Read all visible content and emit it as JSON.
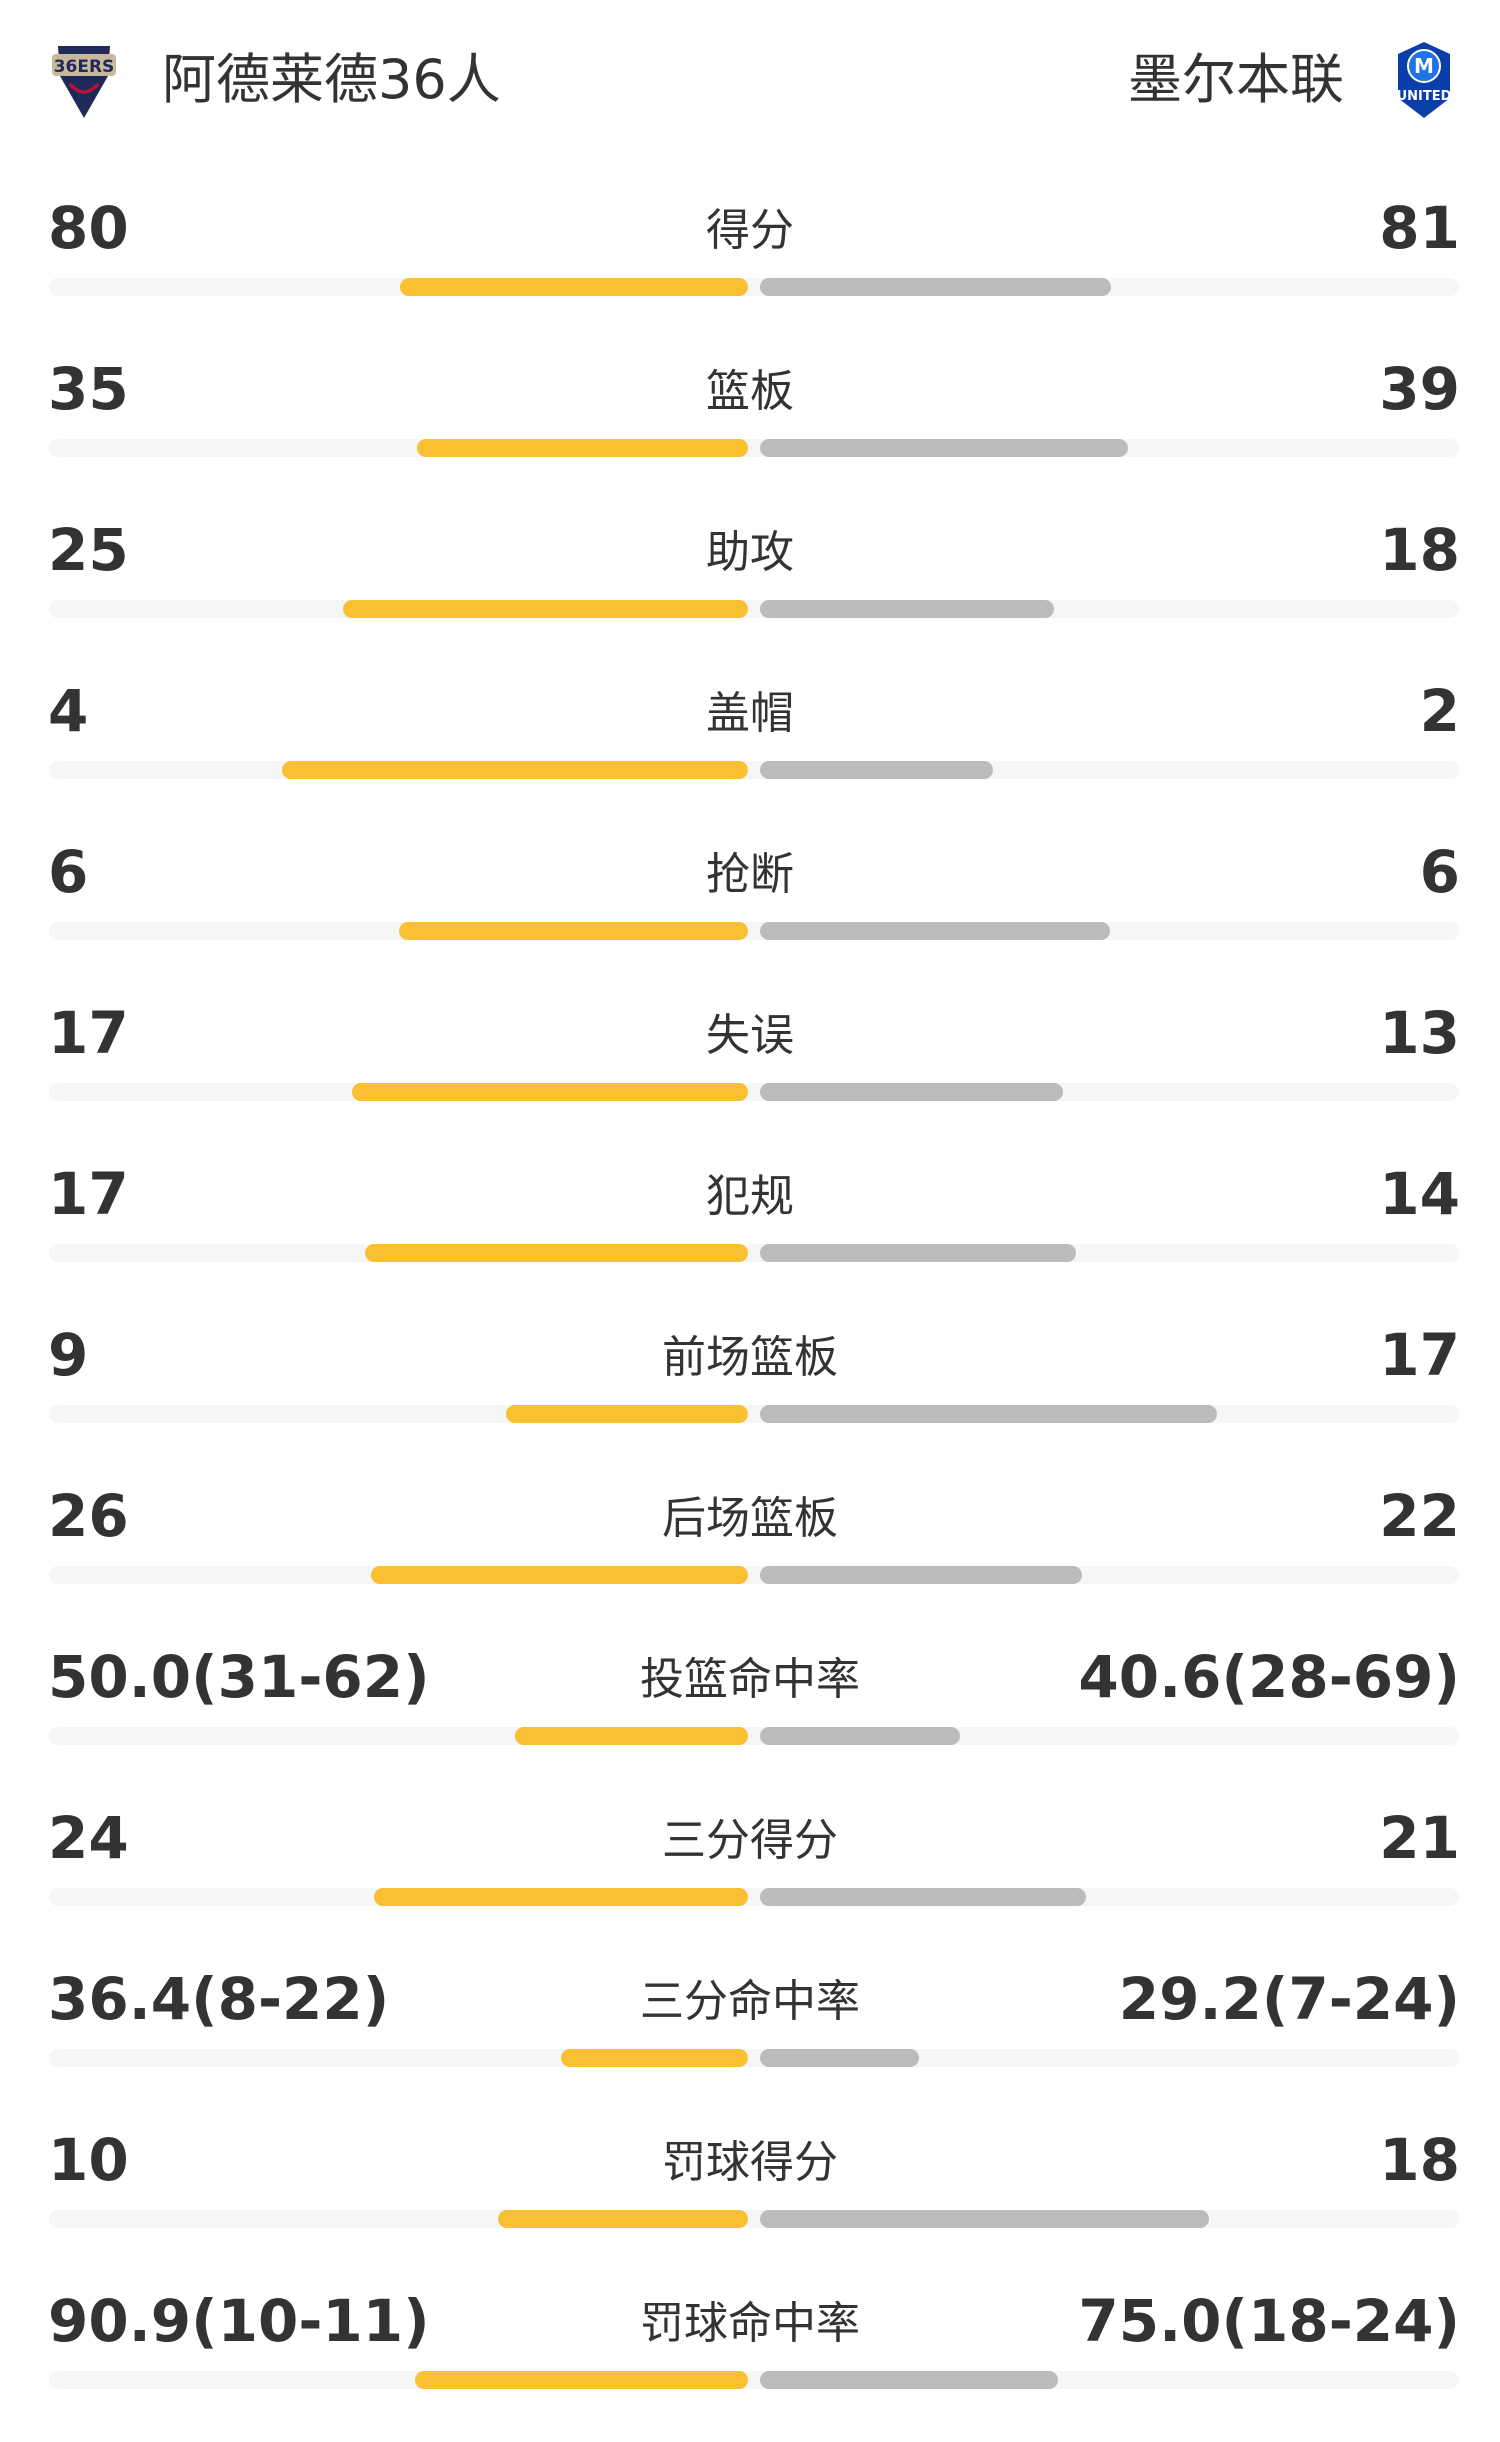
{
  "header": {
    "home_team": "阿德莱德36人",
    "away_team": "墨尔本联",
    "home_logo": "adelaide-36ers-logo",
    "away_logo": "melbourne-united-logo",
    "home_logo_text": "36ERS",
    "away_logo_text": "UNITED"
  },
  "colors": {
    "home_bar": "#fbbf32",
    "away_bar": "#bbbbbb",
    "track": "#f5f6f8"
  },
  "stats": [
    {
      "label": "得分",
      "home": "80",
      "away": "81",
      "home_fill": 0.498,
      "away_fill": 0.502
    },
    {
      "label": "篮板",
      "home": "35",
      "away": "39",
      "home_fill": 0.474,
      "away_fill": 0.526
    },
    {
      "label": "助攻",
      "home": "25",
      "away": "18",
      "home_fill": 0.58,
      "away_fill": 0.42
    },
    {
      "label": "盖帽",
      "home": "4",
      "away": "2",
      "home_fill": 0.667,
      "away_fill": 0.333
    },
    {
      "label": "抢断",
      "home": "6",
      "away": "6",
      "home_fill": 0.5,
      "away_fill": 0.5
    },
    {
      "label": "失误",
      "home": "17",
      "away": "13",
      "home_fill": 0.566,
      "away_fill": 0.434
    },
    {
      "label": "犯规",
      "home": "17",
      "away": "14",
      "home_fill": 0.548,
      "away_fill": 0.452
    },
    {
      "label": "前场篮板",
      "home": "9",
      "away": "17",
      "home_fill": 0.346,
      "away_fill": 0.654
    },
    {
      "label": "后场篮板",
      "home": "26",
      "away": "22",
      "home_fill": 0.54,
      "away_fill": 0.46
    },
    {
      "label": "投篮命中率",
      "home": "50.0(31-62)",
      "away": "40.6(28-69)",
      "home_fill": 0.333,
      "away_fill": 0.286
    },
    {
      "label": "三分得分",
      "home": "24",
      "away": "21",
      "home_fill": 0.535,
      "away_fill": 0.467
    },
    {
      "label": "三分命中率",
      "home": "36.4(8-22)",
      "away": "29.2(7-24)",
      "home_fill": 0.267,
      "away_fill": 0.227
    },
    {
      "label": "罚球得分",
      "home": "10",
      "away": "18",
      "home_fill": 0.357,
      "away_fill": 0.643
    },
    {
      "label": "罚球命中率",
      "home": "90.9(10-11)",
      "away": "75.0(18-24)",
      "home_fill": 0.476,
      "away_fill": 0.427
    }
  ]
}
